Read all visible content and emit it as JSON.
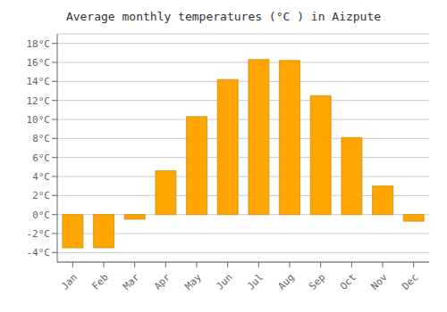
{
  "chart_data": {
    "type": "bar",
    "title": "Average monthly temperatures (°C ) in Aizpute",
    "categories": [
      "Jan",
      "Feb",
      "Mar",
      "Apr",
      "May",
      "Jun",
      "Jul",
      "Aug",
      "Sep",
      "Oct",
      "Nov",
      "Dec"
    ],
    "values": [
      -3.5,
      -3.5,
      -0.5,
      4.6,
      10.3,
      14.2,
      16.3,
      16.2,
      12.5,
      8.1,
      3.0,
      -0.7
    ],
    "color": "#FFA500",
    "ylim": [
      -5,
      19
    ],
    "yticks": [
      {
        "value": -4,
        "label": "-4°C"
      },
      {
        "value": -2,
        "label": "-2°C"
      },
      {
        "value": 0,
        "label": "0°C"
      },
      {
        "value": 2,
        "label": "2°C"
      },
      {
        "value": 4,
        "label": "4°C"
      },
      {
        "value": 6,
        "label": "6°C"
      },
      {
        "value": 8,
        "label": "8°C"
      },
      {
        "value": 10,
        "label": "10°C"
      },
      {
        "value": 12,
        "label": "12°C"
      },
      {
        "value": 14,
        "label": "14°C"
      },
      {
        "value": 16,
        "label": "16°C"
      },
      {
        "value": 18,
        "label": "18°C"
      }
    ],
    "grid": true
  }
}
